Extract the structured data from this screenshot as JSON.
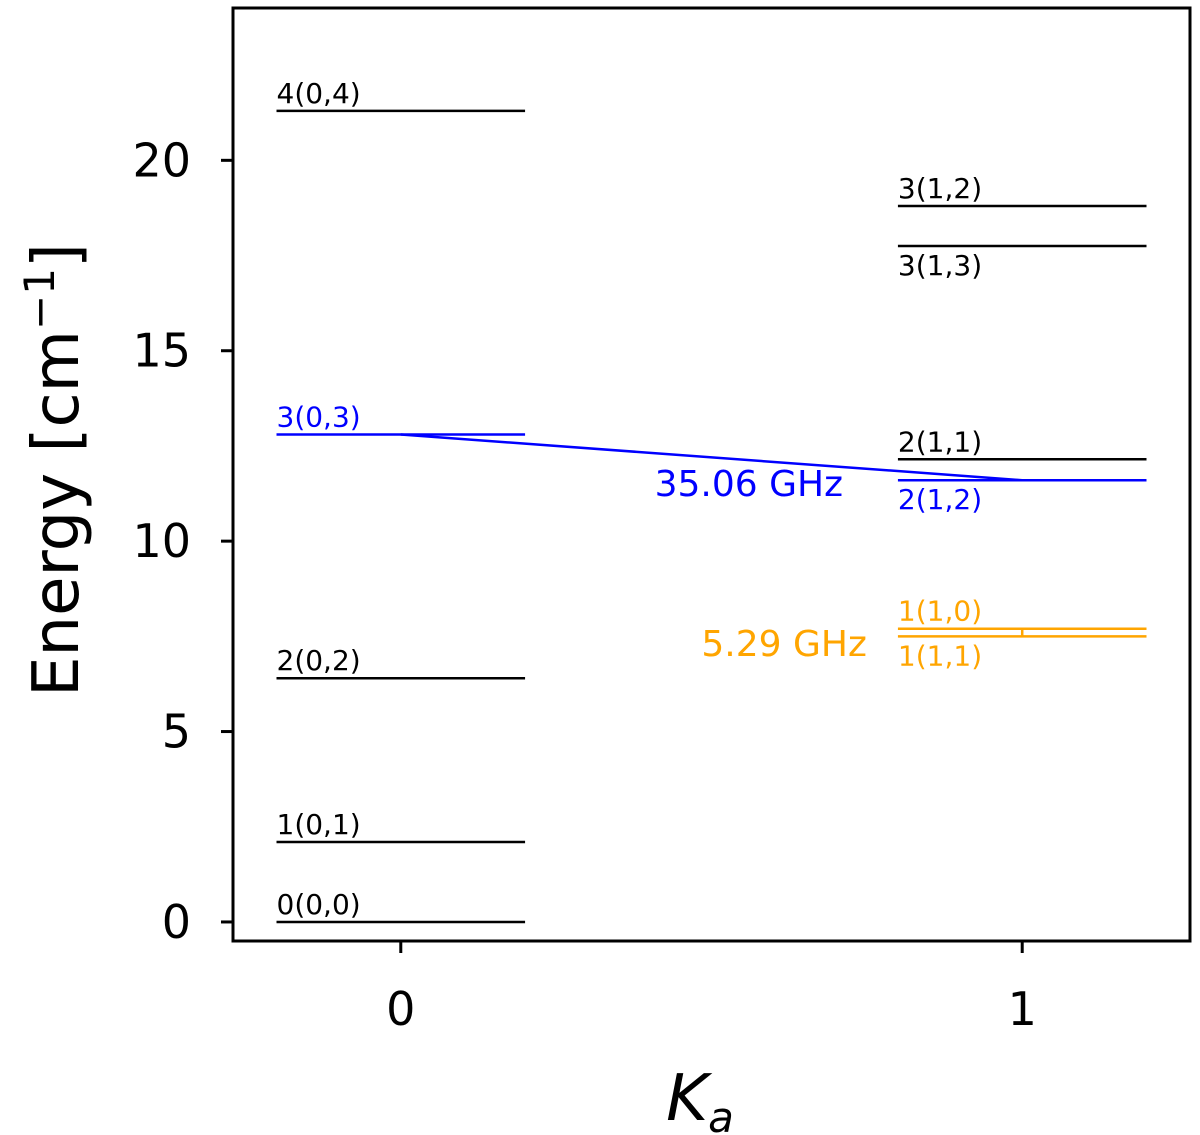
{
  "chart_data": {
    "type": "line",
    "xlabel": "K",
    "xlabel_sub": "a",
    "ylabel": "Energy [cm",
    "ylabel_sup": "−1",
    "ylabel_end": "]",
    "xlim": [
      -0.27,
      1.27
    ],
    "ylim": [
      -0.5,
      24.0
    ],
    "xticks": [
      {
        "value": 0,
        "label": "0"
      },
      {
        "value": 1,
        "label": "1"
      }
    ],
    "yticks": [
      {
        "value": 0,
        "label": "0"
      },
      {
        "value": 5,
        "label": "5"
      },
      {
        "value": 10,
        "label": "10"
      },
      {
        "value": 15,
        "label": "15"
      },
      {
        "value": 20,
        "label": "20"
      }
    ],
    "levels": [
      {
        "label": "0(0,0)",
        "ka": 0,
        "energy": 0.0,
        "color": "#000000",
        "label_pos": "above"
      },
      {
        "label": "1(0,1)",
        "ka": 0,
        "energy": 2.1,
        "color": "#000000",
        "label_pos": "above"
      },
      {
        "label": "2(0,2)",
        "ka": 0,
        "energy": 6.4,
        "color": "#000000",
        "label_pos": "above"
      },
      {
        "label": "3(0,3)",
        "ka": 0,
        "energy": 12.8,
        "color": "#0000ff",
        "label_pos": "above"
      },
      {
        "label": "4(0,4)",
        "ka": 0,
        "energy": 21.3,
        "color": "#000000",
        "label_pos": "above"
      },
      {
        "label": "1(1,1)",
        "ka": 1,
        "energy": 7.5,
        "color": "#ffa500",
        "label_pos": "below"
      },
      {
        "label": "1(1,0)",
        "ka": 1,
        "energy": 7.7,
        "color": "#ffa500",
        "label_pos": "above"
      },
      {
        "label": "2(1,2)",
        "ka": 1,
        "energy": 11.6,
        "color": "#0000ff",
        "label_pos": "below"
      },
      {
        "label": "2(1,1)",
        "ka": 1,
        "energy": 12.15,
        "color": "#000000",
        "label_pos": "above"
      },
      {
        "label": "3(1,3)",
        "ka": 1,
        "energy": 17.75,
        "color": "#000000",
        "label_pos": "below"
      },
      {
        "label": "3(1,2)",
        "ka": 1,
        "energy": 18.8,
        "color": "#000000",
        "label_pos": "above"
      }
    ],
    "level_half_width": 0.2,
    "transitions": [
      {
        "from": {
          "ka": 0,
          "energy": 12.8
        },
        "to": {
          "ka": 1,
          "energy": 11.6
        },
        "color": "#0000ff",
        "label": "35.06 GHz",
        "label_x": 0.56,
        "label_y": 11.5,
        "label_anchor": "middle"
      },
      {
        "from": {
          "ka": 1,
          "energy": 7.7
        },
        "to": {
          "ka": 1,
          "energy": 7.5
        },
        "color": "#ffa500",
        "label": "5.29 GHz",
        "label_x": 0.75,
        "label_y": 7.3,
        "label_anchor": "end"
      }
    ]
  }
}
